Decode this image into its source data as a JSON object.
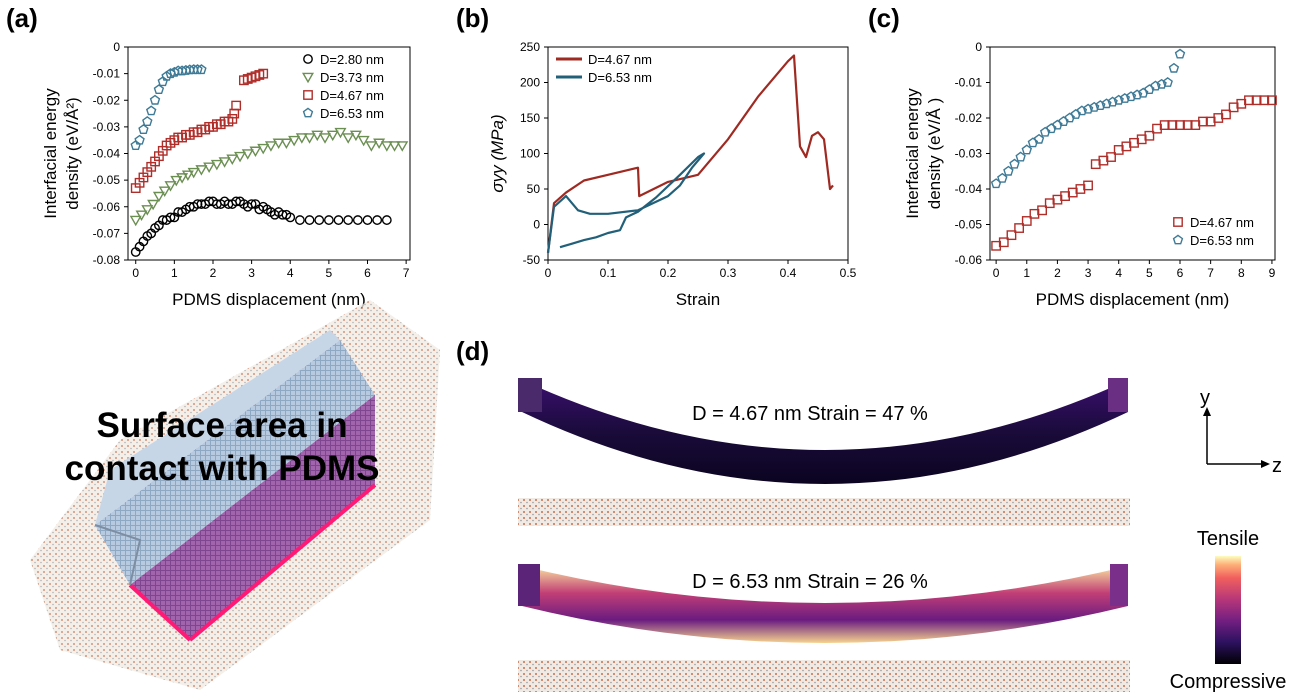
{
  "panel_labels": [
    "(a)",
    "(b)",
    "(c)",
    "(d)"
  ],
  "chart_data": [
    {
      "type": "scatter",
      "panel": "(a)",
      "xlabel": "PDMS displacement (nm)",
      "ylabel_lines": [
        "Interfacial energy",
        "density (eV/Å²)"
      ],
      "xlim": [
        -0.2,
        7.1
      ],
      "ylim": [
        -0.08,
        0
      ],
      "xticks": [
        0,
        1,
        2,
        3,
        4,
        5,
        6,
        7
      ],
      "xtick_labels": [
        "0",
        "1",
        "2",
        "3",
        "4",
        "5",
        "6",
        "7"
      ],
      "yticks": [
        0,
        -0.01,
        -0.02,
        -0.03,
        -0.04,
        -0.05,
        -0.06,
        -0.07,
        -0.08
      ],
      "ytick_labels": [
        "0",
        "-0.01",
        "-0.02",
        "-0.03",
        "-0.04",
        "-0.05",
        "-0.06",
        "-0.07",
        "-0.08"
      ],
      "legend_position": "top-right",
      "series": [
        {
          "name": "D=2.80 nm",
          "marker": "circle",
          "color": "#000000",
          "x": [
            0,
            0.1,
            0.2,
            0.3,
            0.4,
            0.5,
            0.6,
            0.7,
            0.8,
            0.9,
            1.0,
            1.1,
            1.2,
            1.3,
            1.4,
            1.5,
            1.6,
            1.7,
            1.8,
            1.9,
            2.0,
            2.1,
            2.2,
            2.3,
            2.4,
            2.5,
            2.6,
            2.7,
            2.8,
            2.9,
            3.0,
            3.1,
            3.2,
            3.3,
            3.4,
            3.5,
            3.6,
            3.7,
            3.8,
            3.9,
            4.0,
            4.25,
            4.5,
            4.75,
            5.0,
            5.25,
            5.5,
            5.75,
            6.0,
            6.25,
            6.5
          ],
          "y": [
            -0.077,
            -0.075,
            -0.073,
            -0.071,
            -0.07,
            -0.068,
            -0.067,
            -0.065,
            -0.065,
            -0.064,
            -0.064,
            -0.062,
            -0.062,
            -0.061,
            -0.06,
            -0.06,
            -0.059,
            -0.059,
            -0.059,
            -0.058,
            -0.058,
            -0.059,
            -0.059,
            -0.058,
            -0.059,
            -0.059,
            -0.058,
            -0.058,
            -0.059,
            -0.06,
            -0.059,
            -0.059,
            -0.061,
            -0.06,
            -0.061,
            -0.062,
            -0.063,
            -0.062,
            -0.063,
            -0.063,
            -0.064,
            -0.065,
            -0.065,
            -0.065,
            -0.065,
            -0.065,
            -0.065,
            -0.065,
            -0.065,
            -0.065,
            -0.065
          ]
        },
        {
          "name": "D=3.73 nm",
          "marker": "triangle-down",
          "color": "#6b8e52",
          "x": [
            0,
            0.15,
            0.3,
            0.45,
            0.6,
            0.75,
            0.9,
            1.05,
            1.2,
            1.35,
            1.5,
            1.7,
            1.9,
            2.1,
            2.3,
            2.5,
            2.7,
            2.9,
            3.1,
            3.3,
            3.5,
            3.7,
            3.9,
            4.1,
            4.3,
            4.5,
            4.7,
            4.9,
            5.1,
            5.3,
            5.5,
            5.7,
            5.9,
            6.1,
            6.3,
            6.5,
            6.7,
            6.9
          ],
          "y": [
            -0.065,
            -0.063,
            -0.061,
            -0.059,
            -0.056,
            -0.054,
            -0.052,
            -0.05,
            -0.049,
            -0.048,
            -0.047,
            -0.046,
            -0.045,
            -0.044,
            -0.043,
            -0.042,
            -0.041,
            -0.04,
            -0.039,
            -0.038,
            -0.037,
            -0.036,
            -0.036,
            -0.035,
            -0.034,
            -0.034,
            -0.033,
            -0.034,
            -0.033,
            -0.032,
            -0.034,
            -0.033,
            -0.035,
            -0.037,
            -0.036,
            -0.037,
            -0.037,
            -0.037
          ]
        },
        {
          "name": "D=4.67 nm",
          "marker": "square",
          "color": "#b02e2a",
          "x": [
            0,
            0.1,
            0.2,
            0.3,
            0.4,
            0.5,
            0.6,
            0.7,
            0.8,
            0.9,
            1.0,
            1.1,
            1.2,
            1.3,
            1.4,
            1.5,
            1.6,
            1.7,
            1.8,
            1.9,
            2.0,
            2.1,
            2.2,
            2.3,
            2.4,
            2.5,
            2.55,
            2.6,
            2.8,
            2.9,
            3.0,
            3.1,
            3.2,
            3.3
          ],
          "y": [
            -0.053,
            -0.051,
            -0.049,
            -0.047,
            -0.045,
            -0.043,
            -0.041,
            -0.039,
            -0.037,
            -0.036,
            -0.035,
            -0.034,
            -0.034,
            -0.033,
            -0.033,
            -0.032,
            -0.032,
            -0.031,
            -0.031,
            -0.03,
            -0.03,
            -0.029,
            -0.029,
            -0.028,
            -0.028,
            -0.027,
            -0.025,
            -0.022,
            -0.0125,
            -0.012,
            -0.0115,
            -0.011,
            -0.0105,
            -0.01
          ]
        },
        {
          "name": "D=6.53 nm",
          "marker": "pentagon",
          "color": "#3e7a96",
          "x": [
            0,
            0.1,
            0.2,
            0.3,
            0.4,
            0.5,
            0.6,
            0.7,
            0.8,
            0.9,
            1.0,
            1.1,
            1.2,
            1.3,
            1.4,
            1.5,
            1.6,
            1.7
          ],
          "y": [
            -0.037,
            -0.035,
            -0.031,
            -0.028,
            -0.024,
            -0.02,
            -0.016,
            -0.013,
            -0.011,
            -0.01,
            -0.0095,
            -0.009,
            -0.009,
            -0.0088,
            -0.0086,
            -0.0085,
            -0.0085,
            -0.0085
          ]
        }
      ]
    },
    {
      "type": "line",
      "panel": "(b)",
      "xlabel": "Strain",
      "ylabel": "σyy (MPa)",
      "xlim": [
        0,
        0.5
      ],
      "ylim": [
        -50,
        250
      ],
      "xticks": [
        0,
        0.1,
        0.2,
        0.3,
        0.4,
        0.5
      ],
      "xtick_labels": [
        "0",
        "0.1",
        "0.2",
        "0.3",
        "0.4",
        "0.5"
      ],
      "yticks": [
        -50,
        0,
        50,
        100,
        150,
        200,
        250
      ],
      "ytick_labels": [
        "-50",
        "0",
        "50",
        "100",
        "150",
        "200",
        "250"
      ],
      "legend_position": "top-left",
      "series": [
        {
          "name": "D=4.67 nm",
          "color": "#9e2a22",
          "x": [
            0,
            0.01,
            0.03,
            0.06,
            0.1,
            0.15,
            0.152,
            0.2,
            0.25,
            0.3,
            0.35,
            0.4,
            0.41,
            0.42,
            0.43,
            0.44,
            0.45,
            0.46,
            0.47,
            0.475
          ],
          "y": [
            -40,
            30,
            45,
            62,
            70,
            80,
            40,
            60,
            70,
            120,
            180,
            230,
            238,
            110,
            95,
            125,
            130,
            120,
            50,
            55
          ]
        },
        {
          "name": "D=6.53 nm",
          "color": "#22607a",
          "x": [
            0,
            0.01,
            0.03,
            0.05,
            0.07,
            0.1,
            0.15,
            0.2,
            0.22,
            0.24,
            0.26,
            0.25,
            0.22,
            0.18,
            0.15,
            0.13,
            0.12,
            0.1,
            0.08,
            0.06,
            0.04,
            0.02
          ],
          "y": [
            -40,
            25,
            40,
            20,
            15,
            15,
            20,
            40,
            55,
            80,
            100,
            95,
            70,
            38,
            18,
            10,
            -8,
            -12,
            -18,
            -22,
            -27,
            -32
          ]
        }
      ]
    },
    {
      "type": "scatter",
      "panel": "(c)",
      "xlabel": "PDMS displacement (nm)",
      "ylabel_lines": [
        "Interfacial energy",
        "density (eV/Å  )"
      ],
      "xlim": [
        -0.2,
        9.1
      ],
      "ylim": [
        -0.06,
        0
      ],
      "xticks": [
        0,
        1,
        2,
        3,
        4,
        5,
        6,
        7,
        8,
        9
      ],
      "xtick_labels": [
        "0",
        "1",
        "2",
        "3",
        "4",
        "5",
        "6",
        "7",
        "8",
        "9"
      ],
      "yticks": [
        0,
        -0.01,
        -0.02,
        -0.03,
        -0.04,
        -0.05,
        -0.06
      ],
      "ytick_labels": [
        "0",
        "-0.01",
        "-0.02",
        "-0.03",
        "-0.04",
        "-0.05",
        "-0.06"
      ],
      "legend_position": "bottom-right",
      "series": [
        {
          "name": "D=4.67 nm",
          "marker": "square",
          "color": "#b02e2a",
          "x": [
            0,
            0.25,
            0.5,
            0.75,
            1.0,
            1.25,
            1.5,
            1.75,
            2.0,
            2.25,
            2.5,
            2.75,
            3.0,
            3.25,
            3.5,
            3.75,
            4.0,
            4.25,
            4.5,
            4.75,
            5.0,
            5.25,
            5.5,
            5.75,
            6.0,
            6.25,
            6.5,
            6.75,
            7.0,
            7.25,
            7.5,
            7.75,
            8.0,
            8.25,
            8.5,
            8.75,
            9.0
          ],
          "y": [
            -0.056,
            -0.055,
            -0.053,
            -0.051,
            -0.049,
            -0.047,
            -0.046,
            -0.044,
            -0.043,
            -0.042,
            -0.041,
            -0.04,
            -0.039,
            -0.033,
            -0.032,
            -0.031,
            -0.029,
            -0.028,
            -0.027,
            -0.026,
            -0.025,
            -0.023,
            -0.022,
            -0.022,
            -0.022,
            -0.022,
            -0.022,
            -0.021,
            -0.021,
            -0.02,
            -0.019,
            -0.017,
            -0.016,
            -0.015,
            -0.015,
            -0.015,
            -0.015
          ]
        },
        {
          "name": "D=6.53 nm",
          "marker": "pentagon",
          "color": "#3e7a96",
          "x": [
            0,
            0.2,
            0.4,
            0.6,
            0.8,
            1.0,
            1.2,
            1.4,
            1.6,
            1.8,
            2.0,
            2.2,
            2.4,
            2.6,
            2.8,
            3.0,
            3.2,
            3.4,
            3.6,
            3.8,
            4.0,
            4.2,
            4.4,
            4.6,
            4.8,
            5.0,
            5.2,
            5.4,
            5.6,
            5.8,
            6.0
          ],
          "y": [
            -0.0385,
            -0.037,
            -0.035,
            -0.033,
            -0.031,
            -0.029,
            -0.027,
            -0.026,
            -0.024,
            -0.023,
            -0.022,
            -0.021,
            -0.02,
            -0.019,
            -0.018,
            -0.0175,
            -0.017,
            -0.0165,
            -0.016,
            -0.0155,
            -0.015,
            -0.0145,
            -0.014,
            -0.0135,
            -0.013,
            -0.012,
            -0.011,
            -0.0105,
            -0.01,
            -0.006,
            -0.002
          ]
        }
      ]
    }
  ],
  "panel_d": {
    "caption_top": "D = 4.67 nm  Strain = 47 %",
    "caption_bottom": "D = 6.53 nm  Strain = 26 %",
    "axis_y": "y",
    "axis_z": "z",
    "colorbar_top": "Tensile",
    "colorbar_bottom": "Compressive"
  },
  "rendering": {
    "title_lines": [
      "Surface area in",
      "contact with PDMS"
    ],
    "block_color": "#a9bfd8",
    "contact_color": "#9b5ca6",
    "edge_color": "#ff1a75"
  }
}
